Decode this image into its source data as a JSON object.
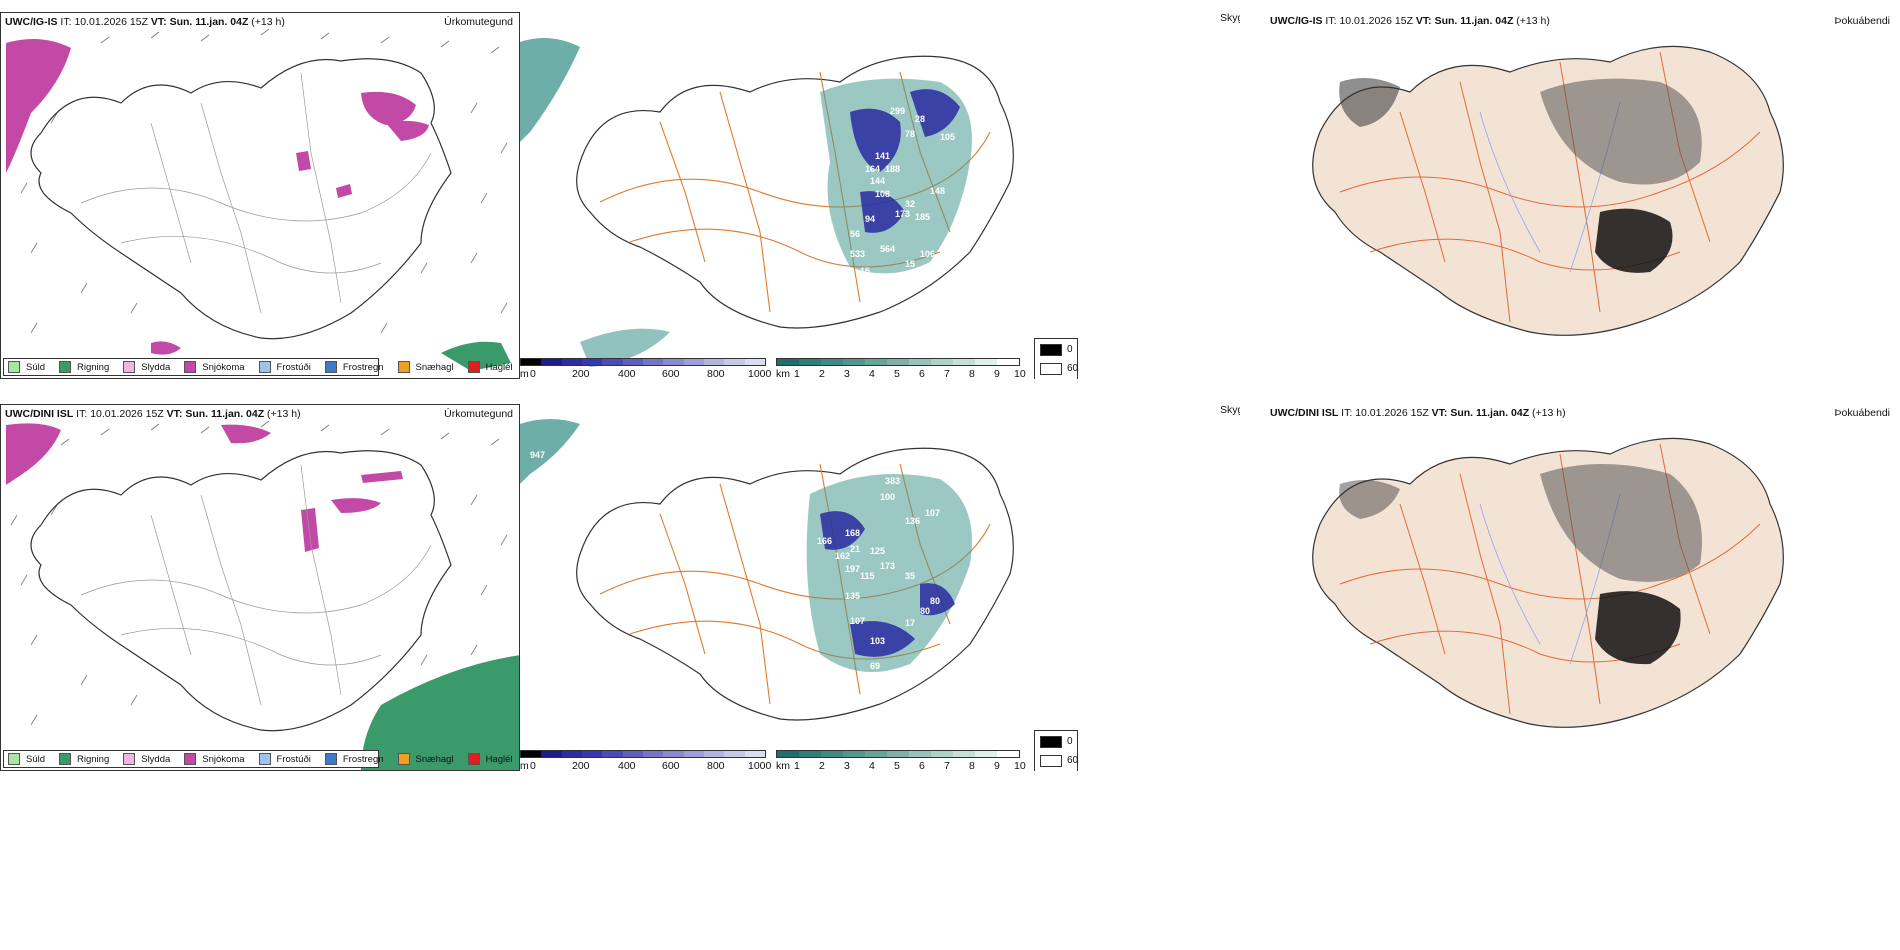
{
  "rows": [
    {
      "model": "UWC/IG-IS",
      "it_label": "IT:",
      "it_value": "10.01.2026 15Z",
      "vt_label": "VT:",
      "vt_value": "Sun. 11.jan. 04Z",
      "lead": "(+13 h)",
      "panel_precip_label": "Úrkomutegund",
      "panel_cloud_label": "Skyggni",
      "panel_fog_label": "Þokuábendi",
      "values": [
        "299",
        "28",
        "78",
        "105",
        "141",
        "164",
        "188",
        "144",
        "108",
        "148",
        "94",
        "173",
        "185",
        "32",
        "56",
        "533",
        "564",
        "106",
        "15",
        "15",
        "15"
      ]
    },
    {
      "model": "UWC/DINI ISL",
      "it_label": "IT:",
      "it_value": "10.01.2026 15Z",
      "vt_label": "VT:",
      "vt_value": "Sun. 11.jan. 04Z",
      "lead": "(+13 h)",
      "panel_precip_label": "Úrkomutegund",
      "panel_cloud_label": "Skyggni",
      "panel_fog_label": "Þokuábendi",
      "values": [
        "947",
        "383",
        "100",
        "136",
        "107",
        "166",
        "168",
        "162",
        "21",
        "197",
        "125",
        "173",
        "115",
        "35",
        "135",
        "80",
        "107",
        "103",
        "80",
        "69",
        "17"
      ]
    }
  ],
  "precip_legend": [
    {
      "label": "Súld",
      "color": "#a6e6a0"
    },
    {
      "label": "Rigning",
      "color": "#3a9a6a"
    },
    {
      "label": "Slydda",
      "color": "#f2b6dc"
    },
    {
      "label": "Snjókoma",
      "color": "#c24aa6"
    },
    {
      "label": "Frostúði",
      "color": "#9cc4ee"
    },
    {
      "label": "Frostregn",
      "color": "#3f7ac8"
    },
    {
      "label": "Snæhagl",
      "color": "#f0a020"
    },
    {
      "label": "Haglél",
      "color": "#e02020"
    }
  ],
  "cloud_base_bar": {
    "unit": "m",
    "ticks": [
      "0",
      "200",
      "400",
      "600",
      "800",
      "1000"
    ],
    "colors": [
      "#000000",
      "#1c1c8c",
      "#2b2ba6",
      "#3838b2",
      "#4a4ab8",
      "#5f5fc0",
      "#7474c8",
      "#8a8ad0",
      "#9e9ed8",
      "#b4b4e0",
      "#c8c8e8",
      "#dcdcf0"
    ]
  },
  "visibility_bar": {
    "unit": "km",
    "ticks": [
      "1",
      "2",
      "3",
      "4",
      "5",
      "6",
      "7",
      "8",
      "9",
      "10"
    ],
    "colors": [
      "#1e6e6e",
      "#2e7e7a",
      "#3e8a84",
      "#52968e",
      "#68a49a",
      "#7eb2a8",
      "#96c2b8",
      "#aed2c8",
      "#c6e0d8",
      "#dff0ea",
      "#ffffff"
    ]
  },
  "fog_key": {
    "labels": [
      "0",
      "60"
    ],
    "colors": [
      "#000000",
      "#ffffff"
    ]
  },
  "colors": {
    "snow": "#c24aa6",
    "rain": "#3a9a6a",
    "visibility": "#4a9a92",
    "cloudbase": "#2a2aa0",
    "roads": "#e07a2a",
    "land": "#f3e3d5",
    "rivers": "#8ea8f0"
  }
}
